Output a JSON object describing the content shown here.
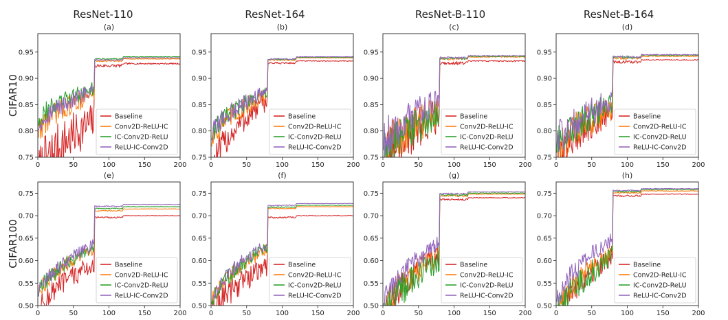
{
  "chart_data": {
    "type": "line",
    "column_titles": [
      "ResNet-110",
      "ResNet-164",
      "ResNet-B-110",
      "ResNet-B-164"
    ],
    "row_titles": [
      "CIFAR10",
      "CIFAR100"
    ],
    "subplot_labels": [
      "(a)",
      "(b)",
      "(c)",
      "(d)",
      "(e)",
      "(f)",
      "(g)",
      "(h)"
    ],
    "x_ticks": [
      0,
      50,
      100,
      150,
      200
    ],
    "xlim": [
      0,
      200
    ],
    "legend": {
      "entries": [
        "Baseline",
        "Conv2D-ReLU-IC",
        "IC-Conv2D-ReLU",
        "ReLU-IC-Conv2D"
      ],
      "colors": [
        "#d62728",
        "#ff7f0e",
        "#2ca02c",
        "#9467bd"
      ],
      "location": "lower-right"
    },
    "rows": [
      {
        "dataset": "CIFAR10",
        "ylim": [
          0.75,
          0.985
        ],
        "y_ticks": [
          "0.75",
          "0.80",
          "0.85",
          "0.90",
          "0.95"
        ],
        "y_tick_values": [
          0.75,
          0.8,
          0.85,
          0.9,
          0.95
        ]
      },
      {
        "dataset": "CIFAR100",
        "ylim": [
          0.5,
          0.775
        ],
        "y_ticks": [
          "0.50",
          "0.55",
          "0.60",
          "0.65",
          "0.70",
          "0.75"
        ],
        "y_tick_values": [
          0.5,
          0.55,
          0.6,
          0.65,
          0.7,
          0.75
        ]
      }
    ],
    "panels": [
      {
        "label": "(a)",
        "model": "ResNet-110",
        "dataset": "CIFAR10",
        "series": [
          {
            "name": "Baseline",
            "start": 0.72,
            "pre": 0.83,
            "post": 0.928,
            "noise": 0.055
          },
          {
            "name": "Conv2D-ReLU-IC",
            "start": 0.8,
            "pre": 0.875,
            "post": 0.937,
            "noise": 0.025
          },
          {
            "name": "IC-Conv2D-ReLU",
            "start": 0.82,
            "pre": 0.885,
            "post": 0.941,
            "noise": 0.02
          },
          {
            "name": "ReLU-IC-Conv2D",
            "start": 0.81,
            "pre": 0.88,
            "post": 0.939,
            "noise": 0.02
          }
        ]
      },
      {
        "label": "(b)",
        "model": "ResNet-164",
        "dataset": "CIFAR10",
        "series": [
          {
            "name": "Baseline",
            "start": 0.72,
            "pre": 0.865,
            "post": 0.933,
            "noise": 0.03
          },
          {
            "name": "Conv2D-ReLU-IC",
            "start": 0.78,
            "pre": 0.875,
            "post": 0.939,
            "noise": 0.025
          },
          {
            "name": "IC-Conv2D-ReLU",
            "start": 0.79,
            "pre": 0.878,
            "post": 0.94,
            "noise": 0.02
          },
          {
            "name": "ReLU-IC-Conv2D",
            "start": 0.79,
            "pre": 0.88,
            "post": 0.941,
            "noise": 0.02
          }
        ]
      },
      {
        "label": "(c)",
        "model": "ResNet-B-110",
        "dataset": "CIFAR10",
        "series": [
          {
            "name": "Baseline",
            "start": 0.74,
            "pre": 0.84,
            "post": 0.933,
            "noise": 0.05
          },
          {
            "name": "Conv2D-ReLU-IC",
            "start": 0.76,
            "pre": 0.845,
            "post": 0.941,
            "noise": 0.045
          },
          {
            "name": "IC-Conv2D-ReLU",
            "start": 0.76,
            "pre": 0.84,
            "post": 0.942,
            "noise": 0.045
          },
          {
            "name": "ReLU-IC-Conv2D",
            "start": 0.78,
            "pre": 0.865,
            "post": 0.943,
            "noise": 0.04
          }
        ]
      },
      {
        "label": "(d)",
        "model": "ResNet-B-164",
        "dataset": "CIFAR10",
        "series": [
          {
            "name": "Baseline",
            "start": 0.74,
            "pre": 0.85,
            "post": 0.935,
            "noise": 0.04
          },
          {
            "name": "Conv2D-ReLU-IC",
            "start": 0.76,
            "pre": 0.855,
            "post": 0.942,
            "noise": 0.04
          },
          {
            "name": "IC-Conv2D-ReLU",
            "start": 0.77,
            "pre": 0.858,
            "post": 0.944,
            "noise": 0.035
          },
          {
            "name": "ReLU-IC-Conv2D",
            "start": 0.78,
            "pre": 0.865,
            "post": 0.945,
            "noise": 0.035
          }
        ]
      },
      {
        "label": "(e)",
        "model": "ResNet-110",
        "dataset": "CIFAR100",
        "series": [
          {
            "name": "Baseline",
            "start": 0.48,
            "pre": 0.6,
            "post": 0.7,
            "noise": 0.03
          },
          {
            "name": "Conv2D-ReLU-IC",
            "start": 0.52,
            "pre": 0.63,
            "post": 0.715,
            "noise": 0.02
          },
          {
            "name": "IC-Conv2D-ReLU",
            "start": 0.52,
            "pre": 0.635,
            "post": 0.72,
            "noise": 0.02
          },
          {
            "name": "ReLU-IC-Conv2D",
            "start": 0.52,
            "pre": 0.64,
            "post": 0.725,
            "noise": 0.02
          }
        ]
      },
      {
        "label": "(f)",
        "model": "ResNet-164",
        "dataset": "CIFAR100",
        "series": [
          {
            "name": "Baseline",
            "start": 0.48,
            "pre": 0.595,
            "post": 0.7,
            "noise": 0.035
          },
          {
            "name": "Conv2D-ReLU-IC",
            "start": 0.5,
            "pre": 0.63,
            "post": 0.72,
            "noise": 0.02
          },
          {
            "name": "IC-Conv2D-ReLU",
            "start": 0.5,
            "pre": 0.635,
            "post": 0.723,
            "noise": 0.02
          },
          {
            "name": "ReLU-IC-Conv2D",
            "start": 0.51,
            "pre": 0.64,
            "post": 0.727,
            "noise": 0.02
          }
        ]
      },
      {
        "label": "(g)",
        "model": "ResNet-B-110",
        "dataset": "CIFAR100",
        "series": [
          {
            "name": "Baseline",
            "start": 0.47,
            "pre": 0.62,
            "post": 0.74,
            "noise": 0.035
          },
          {
            "name": "Conv2D-ReLU-IC",
            "start": 0.48,
            "pre": 0.62,
            "post": 0.748,
            "noise": 0.035
          },
          {
            "name": "IC-Conv2D-ReLU",
            "start": 0.47,
            "pre": 0.61,
            "post": 0.75,
            "noise": 0.04
          },
          {
            "name": "ReLU-IC-Conv2D",
            "start": 0.5,
            "pre": 0.645,
            "post": 0.753,
            "noise": 0.025
          }
        ]
      },
      {
        "label": "(h)",
        "model": "ResNet-B-164",
        "dataset": "CIFAR100",
        "series": [
          {
            "name": "Baseline",
            "start": 0.47,
            "pre": 0.62,
            "post": 0.748,
            "noise": 0.035
          },
          {
            "name": "Conv2D-ReLU-IC",
            "start": 0.48,
            "pre": 0.625,
            "post": 0.755,
            "noise": 0.03
          },
          {
            "name": "IC-Conv2D-ReLU",
            "start": 0.47,
            "pre": 0.615,
            "post": 0.758,
            "noise": 0.035
          },
          {
            "name": "ReLU-IC-Conv2D",
            "start": 0.5,
            "pre": 0.655,
            "post": 0.76,
            "noise": 0.025
          }
        ]
      }
    ]
  }
}
